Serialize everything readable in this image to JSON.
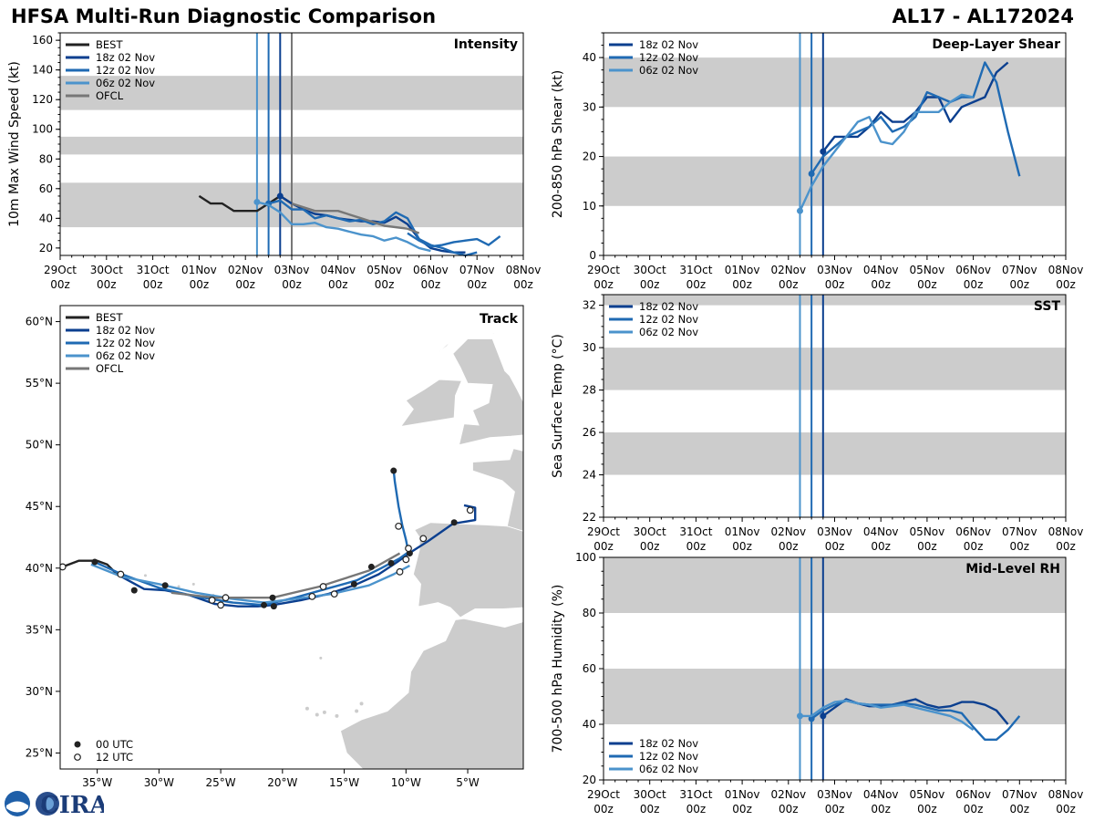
{
  "header": {
    "title_left": "HFSA Multi-Run Diagnostic Comparison",
    "title_right": "AL17 - AL172024"
  },
  "colors": {
    "BEST": "#222222",
    "18z": "#0b3f8f",
    "12z": "#1f6ab3",
    "06z": "#4b93cc",
    "OFCL": "#777777",
    "band": "#cccccc",
    "land": "#cccccc"
  },
  "time_axis": {
    "labels": [
      [
        "29Oct",
        "00z"
      ],
      [
        "30Oct",
        "00z"
      ],
      [
        "31Oct",
        "00z"
      ],
      [
        "01Nov",
        "00z"
      ],
      [
        "02Nov",
        "00z"
      ],
      [
        "03Nov",
        "00z"
      ],
      [
        "04Nov",
        "00z"
      ],
      [
        "05Nov",
        "00z"
      ],
      [
        "06Nov",
        "00z"
      ],
      [
        "07Nov",
        "00z"
      ],
      [
        "08Nov",
        "00z"
      ]
    ],
    "range_hours": [
      0,
      240
    ],
    "init_lines": [
      {
        "run": "06z",
        "hour": 102
      },
      {
        "run": "12z",
        "hour": 108
      },
      {
        "run": "18z",
        "hour": 114
      }
    ],
    "ofcl_line": {
      "hour": 120
    }
  },
  "logo": {
    "text": "CIRA",
    "org": "NOAA"
  },
  "chart_data": [
    {
      "id": "intensity",
      "type": "line",
      "title": "Intensity",
      "ylabel": "10m Max Wind Speed (kt)",
      "ylim": [
        15,
        165
      ],
      "yticks": [
        20,
        40,
        60,
        80,
        100,
        120,
        140,
        160
      ],
      "bands": [
        [
          34,
          64
        ],
        [
          83,
          95
        ],
        [
          113,
          136
        ]
      ],
      "legend": [
        "BEST",
        "18z 02 Nov",
        "12z 02 Nov",
        "06z 02 Nov",
        "OFCL"
      ],
      "series": [
        {
          "name": "BEST",
          "color_key": "BEST",
          "init": null,
          "x": [
            72,
            78,
            84,
            90,
            96,
            102,
            108,
            114,
            120
          ],
          "y": [
            55,
            50,
            50,
            45,
            45,
            45,
            50,
            55,
            50
          ]
        },
        {
          "name": "18z 02 Nov",
          "color_key": "18z",
          "init": 114,
          "x": [
            114,
            120,
            126,
            132,
            138,
            144,
            150,
            156,
            162,
            168,
            174,
            180,
            186,
            192,
            198,
            204,
            210
          ],
          "y": [
            55,
            50,
            46,
            43,
            42,
            40,
            39,
            38,
            38,
            37,
            41,
            36,
            26,
            20,
            18,
            17,
            17
          ]
        },
        {
          "name": "12z 02 Nov",
          "color_key": "12z",
          "init": 108,
          "x": [
            108,
            114,
            120,
            126,
            132,
            138,
            144,
            150,
            156,
            162,
            168,
            174,
            180,
            186,
            192,
            198,
            204,
            210,
            216,
            222,
            228,
            234,
            240
          ],
          "y": [
            50,
            52,
            46,
            46,
            40,
            42,
            40,
            38,
            39,
            36,
            38,
            44,
            40,
            26,
            22,
            20,
            17,
            15,
            17,
            null,
            null,
            null,
            null
          ]
        },
        {
          "name": "12z 02 Nov tail",
          "color_key": "12z",
          "init": null,
          "x": [
            180,
            186,
            192,
            198,
            204,
            210,
            216,
            222,
            228
          ],
          "y": [
            30,
            25,
            21,
            22,
            24,
            25,
            26,
            22,
            28
          ]
        },
        {
          "name": "06z 02 Nov",
          "color_key": "06z",
          "init": 102,
          "x": [
            102,
            108,
            114,
            120,
            126,
            132,
            138,
            144,
            150,
            156,
            162,
            168,
            174,
            180,
            186,
            192
          ],
          "y": [
            51,
            49,
            44,
            36,
            36,
            37,
            34,
            33,
            31,
            29,
            28,
            25,
            27,
            24,
            20,
            18
          ]
        },
        {
          "name": "OFCL",
          "color_key": "OFCL",
          "init": null,
          "x": [
            120,
            132,
            144,
            156,
            168,
            180,
            186
          ],
          "y": [
            50,
            45,
            45,
            40,
            35,
            33,
            30
          ]
        }
      ]
    },
    {
      "id": "shear",
      "type": "line",
      "title": "Deep-Layer Shear",
      "ylabel": "200-850 hPa Shear (kt)",
      "ylim": [
        0,
        45
      ],
      "yticks": [
        0,
        10,
        20,
        30,
        40
      ],
      "bands": [
        [
          10,
          20
        ],
        [
          30,
          40
        ]
      ],
      "legend": [
        "18z 02 Nov",
        "12z 02 Nov",
        "06z 02 Nov"
      ],
      "series": [
        {
          "name": "18z 02 Nov",
          "color_key": "18z",
          "init": 114,
          "x": [
            114,
            120,
            126,
            132,
            138,
            144,
            150,
            156,
            162,
            168,
            174,
            180,
            186,
            192,
            198,
            204,
            210
          ],
          "y": [
            21,
            24,
            24,
            24,
            26,
            29,
            27,
            27,
            29,
            32,
            32,
            27,
            30,
            31,
            32,
            37,
            39
          ]
        },
        {
          "name": "12z 02 Nov",
          "color_key": "12z",
          "init": 108,
          "x": [
            108,
            114,
            120,
            126,
            132,
            138,
            144,
            150,
            156,
            162,
            168,
            174,
            180,
            186,
            192,
            198,
            204,
            210,
            216
          ],
          "y": [
            16.5,
            20,
            22,
            24,
            25,
            26,
            28,
            25,
            26,
            28,
            33,
            32,
            31,
            32,
            32,
            39,
            35,
            25,
            16
          ]
        },
        {
          "name": "06z 02 Nov",
          "color_key": "06z",
          "init": 102,
          "x": [
            102,
            108,
            114,
            120,
            126,
            132,
            138,
            144,
            150,
            156,
            162,
            168,
            174,
            180,
            186,
            192
          ],
          "y": [
            9,
            14,
            18,
            21,
            24,
            27,
            28,
            23,
            22.5,
            25,
            29,
            29,
            29,
            31,
            32.5,
            32
          ]
        }
      ]
    },
    {
      "id": "sst",
      "type": "line",
      "title": "SST",
      "ylabel": "Sea Surface Temp (°C)",
      "ylim": [
        22,
        32.5
      ],
      "yticks": [
        22,
        24,
        26,
        28,
        30,
        32
      ],
      "bands": [
        [
          24,
          26
        ],
        [
          28,
          30
        ],
        [
          32,
          32.5
        ]
      ],
      "legend": [
        "18z 02 Nov",
        "12z 02 Nov",
        "06z 02 Nov"
      ],
      "series": []
    },
    {
      "id": "rh",
      "type": "line",
      "title": "Mid-Level RH",
      "ylabel": "700-500 hPa Humidity (%)",
      "ylim": [
        20,
        100
      ],
      "yticks": [
        20,
        40,
        60,
        80,
        100
      ],
      "bands": [
        [
          40,
          60
        ],
        [
          80,
          100
        ]
      ],
      "legend": [
        "18z 02 Nov",
        "12z 02 Nov",
        "06z 02 Nov"
      ],
      "series": [
        {
          "name": "18z 02 Nov",
          "color_key": "18z",
          "init": 114,
          "x": [
            114,
            120,
            126,
            132,
            138,
            144,
            150,
            156,
            162,
            168,
            174,
            180,
            186,
            192,
            198,
            204,
            210
          ],
          "y": [
            43,
            46,
            49,
            47.5,
            46.5,
            46.5,
            47,
            48,
            49,
            47,
            46,
            46.5,
            48,
            48,
            47,
            45,
            40
          ]
        },
        {
          "name": "12z 02 Nov",
          "color_key": "12z",
          "init": 108,
          "x": [
            108,
            114,
            120,
            126,
            132,
            138,
            144,
            150,
            156,
            162,
            168,
            174,
            180,
            186,
            192,
            198,
            204,
            210,
            216
          ],
          "y": [
            42,
            45,
            47,
            48.5,
            47.5,
            47,
            47,
            47,
            47.5,
            47,
            46,
            45,
            45,
            44,
            39,
            34.5,
            34.5,
            38,
            43
          ]
        },
        {
          "name": "06z 02 Nov",
          "color_key": "06z",
          "init": 102,
          "x": [
            102,
            108,
            114,
            120,
            126,
            132,
            138,
            144,
            150,
            156,
            162,
            168,
            174,
            180,
            186,
            192
          ],
          "y": [
            43,
            43,
            46,
            48,
            48.5,
            47.5,
            47,
            46,
            46.5,
            47,
            46,
            45,
            44,
            43,
            41,
            38
          ]
        }
      ]
    },
    {
      "id": "track",
      "type": "scatter",
      "title": "Track",
      "xticks": [
        -35,
        -30,
        -25,
        -20,
        -15,
        -10,
        -5
      ],
      "xtick_labels": [
        "35°W",
        "30°W",
        "25°W",
        "20°W",
        "15°W",
        "10°W",
        "5°W"
      ],
      "yticks": [
        25,
        30,
        35,
        40,
        45,
        50,
        55,
        60
      ],
      "ytick_labels": [
        "25°N",
        "30°N",
        "35°N",
        "40°N",
        "45°N",
        "50°N",
        "55°N",
        "60°N"
      ],
      "xlim": [
        -38,
        -0.5
      ],
      "ylim": [
        23.7,
        61.3
      ],
      "legend": [
        "BEST",
        "18z 02 Nov",
        "12z 02 Nov",
        "06z 02 Nov",
        "OFCL"
      ],
      "marker_legend": [
        "00 UTC",
        "12 UTC"
      ],
      "series": [
        {
          "name": "BEST",
          "color_key": "BEST",
          "lon": [
            -38,
            -37.8,
            -36.5,
            -35,
            -34.2,
            -33.4
          ],
          "lat": [
            40.0,
            40.1,
            40.6,
            40.6,
            40.3,
            39.5
          ]
        },
        {
          "name": "18z 02 Nov",
          "color_key": "18z",
          "lon": [
            -33.4,
            -31.2,
            -29.5,
            -27.5,
            -25.5,
            -23.6,
            -22,
            -20.8,
            -18.5,
            -16.3,
            -14.2,
            -12.2,
            -10.7,
            -9.6,
            -8.2,
            -6.2,
            -5,
            -4.4,
            -4.4,
            -5.3
          ],
          "lat": [
            39.5,
            38.3,
            38.2,
            37.8,
            37.1,
            36.9,
            36.9,
            37.0,
            37.4,
            37.9,
            38.6,
            39.5,
            40.5,
            41.3,
            42.2,
            43.6,
            43.8,
            43.9,
            44.9,
            45.1
          ]
        },
        {
          "name": "12z 02 Nov",
          "color_key": "12z",
          "lon": [
            -35,
            -33,
            -30,
            -27,
            -24,
            -21.5,
            -19,
            -16.5,
            -14,
            -12,
            -10.5,
            -9.8,
            -10,
            -10.3,
            -10.6,
            -10.9,
            -11
          ],
          "lat": [
            40.4,
            39.5,
            38.4,
            37.7,
            37.2,
            37.0,
            37.6,
            38.3,
            39.0,
            40.0,
            40.8,
            41.3,
            42.3,
            43.5,
            45.0,
            47.0,
            47.9
          ]
        },
        {
          "name": "06z 02 Nov",
          "color_key": "06z",
          "lon": [
            -35.5,
            -33,
            -30,
            -27,
            -24,
            -21.5,
            -19,
            -16,
            -13,
            -11,
            -9.7
          ],
          "lat": [
            40.3,
            39.3,
            38.7,
            38.0,
            37.5,
            37.2,
            37.5,
            37.9,
            38.6,
            39.5,
            40.2
          ]
        },
        {
          "name": "OFCL",
          "color_key": "OFCL",
          "lon": [
            -29,
            -25.5,
            -21.5,
            -20.8,
            -17,
            -13,
            -10.5
          ],
          "lat": [
            38.0,
            37.6,
            37.6,
            37.6,
            38.5,
            39.8,
            41.2
          ]
        }
      ],
      "points_00utc": [
        [
          -35.2,
          40.5
        ],
        [
          -32,
          38.2
        ],
        [
          -29.5,
          38.6
        ],
        [
          -21.5,
          37.0
        ],
        [
          -20.8,
          37.6
        ],
        [
          -20.7,
          36.9
        ],
        [
          -14.2,
          38.7
        ],
        [
          -12.8,
          40.1
        ],
        [
          -11.2,
          40.4
        ],
        [
          -9.7,
          41.2
        ],
        [
          -6.1,
          43.7
        ],
        [
          -11,
          47.9
        ]
      ],
      "points_12utc": [
        [
          -37.8,
          40.1
        ],
        [
          -33.1,
          39.5
        ],
        [
          -25.7,
          37.4
        ],
        [
          -24.6,
          37.6
        ],
        [
          -25,
          37.0
        ],
        [
          -17.6,
          37.7
        ],
        [
          -16.7,
          38.5
        ],
        [
          -15.8,
          37.9
        ],
        [
          -10.5,
          39.7
        ],
        [
          -10,
          40.7
        ],
        [
          -9.8,
          41.6
        ],
        [
          -8.6,
          42.4
        ],
        [
          -10.6,
          43.4
        ],
        [
          -4.8,
          44.7
        ]
      ]
    }
  ]
}
